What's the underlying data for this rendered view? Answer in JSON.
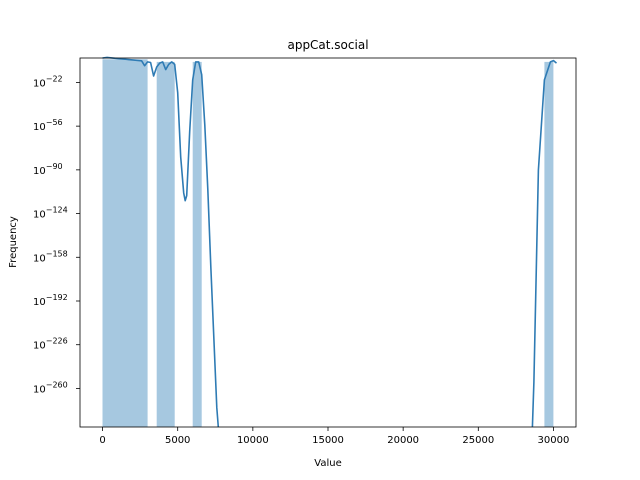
{
  "chart_data": {
    "type": "bar",
    "title": "appCat.social",
    "xlabel": "Value",
    "ylabel": "Frequency",
    "y_scale": "log",
    "xlim": [
      -1500,
      31500
    ],
    "ylim_exponent": [
      -290,
      -3
    ],
    "x_ticks": [
      {
        "value": 0,
        "label": "0"
      },
      {
        "value": 5000,
        "label": "5000"
      },
      {
        "value": 10000,
        "label": "10000"
      },
      {
        "value": 15000,
        "label": "15000"
      },
      {
        "value": 20000,
        "label": "20000"
      },
      {
        "value": 25000,
        "label": "25000"
      },
      {
        "value": 30000,
        "label": "30000"
      }
    ],
    "y_ticks": [
      {
        "exp": -22,
        "base": "10",
        "label": "−22"
      },
      {
        "exp": -56,
        "base": "10",
        "label": "−56"
      },
      {
        "exp": -90,
        "base": "10",
        "label": "−90"
      },
      {
        "exp": -124,
        "base": "10",
        "label": "−124"
      },
      {
        "exp": -158,
        "base": "10",
        "label": "−158"
      },
      {
        "exp": -192,
        "base": "10",
        "label": "−192"
      },
      {
        "exp": -226,
        "base": "10",
        "label": "−226"
      },
      {
        "exp": -260,
        "base": "10",
        "label": "−260"
      }
    ],
    "histogram": {
      "color": "#a6c8e0",
      "bins": [
        {
          "x0": 0,
          "x1": 3000,
          "exp": -4
        },
        {
          "x0": 3600,
          "x1": 4800,
          "exp": -6
        },
        {
          "x0": 6000,
          "x1": 6600,
          "exp": -6
        },
        {
          "x0": 29400,
          "x1": 30000,
          "exp": -6
        }
      ]
    },
    "kde": {
      "color": "#2e7bb4",
      "segments": [
        {
          "points": [
            [
              0,
              -3
            ],
            [
              300,
              -2.5
            ],
            [
              1000,
              -3.5
            ],
            [
              2000,
              -4.5
            ],
            [
              2600,
              -5.2
            ],
            [
              2800,
              -9
            ],
            [
              3000,
              -6
            ],
            [
              3200,
              -6.5
            ],
            [
              3400,
              -17
            ],
            [
              3600,
              -10
            ],
            [
              3800,
              -7
            ],
            [
              4000,
              -6
            ],
            [
              4200,
              -12
            ],
            [
              4400,
              -8
            ],
            [
              4600,
              -6
            ],
            [
              4800,
              -8
            ],
            [
              5000,
              -30
            ],
            [
              5200,
              -80
            ],
            [
              5400,
              -108
            ],
            [
              5500,
              -114
            ],
            [
              5600,
              -110
            ],
            [
              5800,
              -60
            ],
            [
              6000,
              -20
            ],
            [
              6200,
              -6
            ],
            [
              6400,
              -6
            ],
            [
              6600,
              -16
            ],
            [
              6800,
              -55
            ],
            [
              7000,
              -105
            ],
            [
              7200,
              -165
            ],
            [
              7400,
              -220
            ],
            [
              7600,
              -275
            ],
            [
              7700,
              -293
            ]
          ]
        },
        {
          "points": [
            [
              28600,
              -293
            ],
            [
              28700,
              -255
            ],
            [
              29000,
              -90
            ],
            [
              29400,
              -20
            ],
            [
              29800,
              -6
            ],
            [
              30000,
              -5
            ],
            [
              30200,
              -7
            ]
          ]
        }
      ]
    }
  }
}
